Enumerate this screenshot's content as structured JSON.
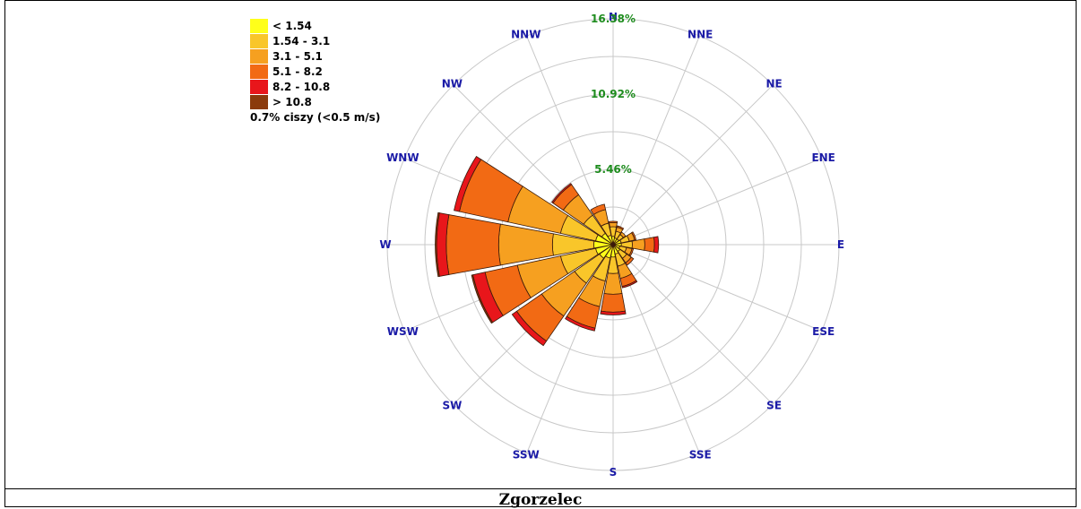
{
  "caption": "Zgorzelec",
  "chart_data": {
    "type": "windrose",
    "directions": [
      "N",
      "NNE",
      "NE",
      "ENE",
      "E",
      "ESE",
      "SE",
      "SSE",
      "S",
      "SSW",
      "SW",
      "WSW",
      "W",
      "WNW",
      "NW",
      "NNW"
    ],
    "ring_labels": [
      "5.46%",
      "10.92%",
      "16.38%"
    ],
    "ring_values": [
      5.46,
      10.92,
      16.38
    ],
    "bins": [
      {
        "label": "< 1.54",
        "color": "#ffff1a"
      },
      {
        "label": "1.54 - 3.1",
        "color": "#f9c62a"
      },
      {
        "label": "3.1 - 5.1",
        "color": "#f6a020"
      },
      {
        "label": "5.1 - 8.2",
        "color": "#f26a14"
      },
      {
        "label": "8.2 - 10.8",
        "color": "#e8161b"
      },
      {
        "label": "> 10.8",
        "color": "#8b3a0c"
      }
    ],
    "calm_note": "0.7% ciszy (<0.5 m/s)",
    "frequencies": {
      "N": [
        0.6,
        0.7,
        0.3,
        0.1,
        0.0,
        0.0
      ],
      "NNE": [
        0.5,
        0.5,
        0.3,
        0.1,
        0.0,
        0.0
      ],
      "NE": [
        0.5,
        0.4,
        0.2,
        0.0,
        0.0,
        0.0
      ],
      "ENE": [
        0.6,
        0.6,
        0.4,
        0.1,
        0.0,
        0.0
      ],
      "E": [
        0.6,
        0.8,
        0.9,
        0.7,
        0.3,
        0.0
      ],
      "ESE": [
        0.5,
        0.5,
        0.4,
        0.1,
        0.0,
        0.0
      ],
      "SE": [
        0.6,
        0.6,
        0.4,
        0.2,
        0.0,
        0.0
      ],
      "SSE": [
        0.7,
        0.9,
        0.9,
        0.6,
        0.1,
        0.0
      ],
      "S": [
        0.9,
        1.2,
        1.5,
        1.3,
        0.2,
        0.0
      ],
      "SSW": [
        1.0,
        1.7,
        1.9,
        1.6,
        0.2,
        0.0
      ],
      "SW": [
        1.2,
        2.2,
        2.9,
        2.2,
        0.4,
        0.0
      ],
      "WSW": [
        1.3,
        2.6,
        3.2,
        2.4,
        0.9,
        0.1
      ],
      "W": [
        1.4,
        3.0,
        3.9,
        3.8,
        0.7,
        0.1
      ],
      "WNW": [
        1.3,
        2.6,
        3.9,
        3.6,
        0.4,
        0.0
      ],
      "NW": [
        1.0,
        1.6,
        1.8,
        0.9,
        0.1,
        0.0
      ],
      "NNW": [
        0.7,
        0.9,
        1.0,
        0.4,
        0.0,
        0.0
      ]
    }
  }
}
